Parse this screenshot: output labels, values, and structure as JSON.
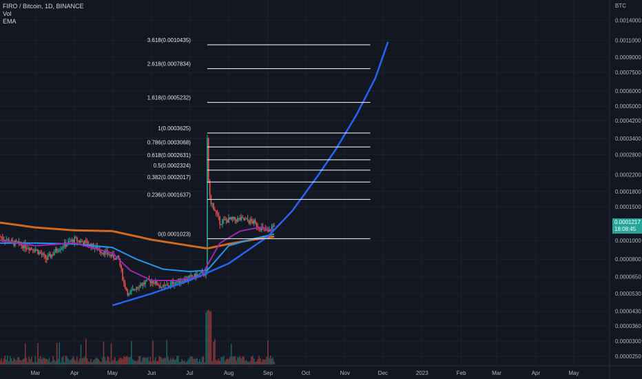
{
  "header": {
    "symbol_line": "FIRO / Bitcoin, 1D, BINANCE",
    "indicators": [
      "Vol",
      "EMA"
    ]
  },
  "price_axis": {
    "unit": "BTC",
    "labels": [
      "0.0014000",
      "0.0011000",
      "0.0009000",
      "0.0007500",
      "0.0006000",
      "0.0005000",
      "0.0004200",
      "0.0003400",
      "0.0002800",
      "0.0002200",
      "0.0001800",
      "0.0001500",
      "0.0001000",
      "0.0000800",
      "0.0000650",
      "0.0000530",
      "0.0000430",
      "0.0000360",
      "0.0000300",
      "0.0000250"
    ]
  },
  "price_badge": {
    "price": "0.0001217",
    "countdown": "18:08:45"
  },
  "time_axis": {
    "labels": [
      "Mar",
      "Apr",
      "May",
      "Jun",
      "Jul",
      "Aug",
      "Sep",
      "Oct",
      "Nov",
      "Dec",
      "2023",
      "Feb",
      "Mar",
      "Apr",
      "May"
    ]
  },
  "colors": {
    "background": "#131722",
    "grid": "#1e222d",
    "text": "#b2b5be",
    "up": "#26a69a",
    "down": "#ef5350",
    "ema_short": "#9c27b0",
    "ema_mid": "#2196f3",
    "ema_long": "#d2691e",
    "projection": "#2962ff",
    "fib": "#ffffff"
  },
  "chart_data": {
    "type": "line",
    "title": "FIRO / Bitcoin, 1D, BINANCE",
    "y_scale": "log",
    "ylim": [
      2.4e-05,
      0.00155
    ],
    "x_range": [
      "2022-02-01",
      "2023-05-31"
    ],
    "fib_levels": [
      {
        "label": "3.618(0.0010435)",
        "ratio": 3.618,
        "price": 0.0010435
      },
      {
        "label": "2.618(0.0007834)",
        "ratio": 2.618,
        "price": 0.0007834
      },
      {
        "label": "1.618(0.0005232)",
        "ratio": 1.618,
        "price": 0.0005232
      },
      {
        "label": "1(0.0003625)",
        "ratio": 1,
        "price": 0.0003625
      },
      {
        "label": "0.786(0.0003068)",
        "ratio": 0.786,
        "price": 0.0003068
      },
      {
        "label": "0.618(0.0002631)",
        "ratio": 0.618,
        "price": 0.0002631
      },
      {
        "label": "0.5(0.0002324)",
        "ratio": 0.5,
        "price": 0.0002324
      },
      {
        "label": "0.382(0.0002017)",
        "ratio": 0.382,
        "price": 0.0002017
      },
      {
        "label": "0.236(0.0001637)",
        "ratio": 0.236,
        "price": 0.0001637
      },
      {
        "label": "0(0.0001023)",
        "ratio": 0,
        "price": 0.0001023
      }
    ],
    "fib_range": {
      "start": "2022-07-15",
      "end": "2022-11-21"
    },
    "series": [
      {
        "kind": "price",
        "x": [
          "2022-02-01",
          "2022-02-10",
          "2022-02-20",
          "2022-03-01",
          "2022-03-10",
          "2022-03-20",
          "2022-04-01",
          "2022-04-10",
          "2022-04-20",
          "2022-05-01",
          "2022-05-06",
          "2022-05-10",
          "2022-05-14",
          "2022-05-20",
          "2022-06-01",
          "2022-06-10",
          "2022-06-20",
          "2022-07-01",
          "2022-07-10",
          "2022-07-14",
          "2022-07-15",
          "2022-07-16",
          "2022-07-18",
          "2022-07-25",
          "2022-08-01",
          "2022-08-10",
          "2022-08-20",
          "2022-09-01",
          "2022-09-06"
        ],
        "y": [
          0.000105,
          9.8e-05,
          9.4e-05,
          9e-05,
          8e-05,
          9.2e-05,
          0.000101,
          9.7e-05,
          9e-05,
          8.3e-05,
          8e-05,
          6e-05,
          5.2e-05,
          5.8e-05,
          6.2e-05,
          5.7e-05,
          6.1e-05,
          6.4e-05,
          6.7e-05,
          6.8e-05,
          0.00033,
          0.0002,
          0.00016,
          0.000125,
          0.000128,
          0.000129,
          0.000125,
          0.00011,
          0.0001217
        ]
      },
      {
        "kind": "ema_short",
        "x": [
          "2022-02-01",
          "2022-03-01",
          "2022-04-01",
          "2022-05-01",
          "2022-05-15",
          "2022-06-01",
          "2022-06-20",
          "2022-07-10",
          "2022-07-25",
          "2022-08-10",
          "2022-08-25",
          "2022-09-06"
        ],
        "y": [
          0.0001,
          9.4e-05,
          9.7e-05,
          8.6e-05,
          7e-05,
          6.2e-05,
          6.2e-05,
          6.5e-05,
          9.7e-05,
          0.000112,
          0.000117,
          0.000113
        ]
      },
      {
        "kind": "ema_mid",
        "x": [
          "2022-02-01",
          "2022-03-01",
          "2022-04-01",
          "2022-05-01",
          "2022-05-20",
          "2022-06-10",
          "2022-07-01",
          "2022-07-15",
          "2022-08-01",
          "2022-08-20",
          "2022-09-06"
        ],
        "y": [
          9.7e-05,
          9.7e-05,
          9.6e-05,
          9.2e-05,
          8e-05,
          7.1e-05,
          6.9e-05,
          7e-05,
          9.4e-05,
          0.000102,
          0.000108
        ]
      },
      {
        "kind": "ema_long",
        "x": [
          "2022-02-01",
          "2022-03-01",
          "2022-04-01",
          "2022-05-01",
          "2022-06-01",
          "2022-07-01",
          "2022-07-15",
          "2022-08-01",
          "2022-08-20",
          "2022-09-06"
        ],
        "y": [
          0.000124,
          0.000117,
          0.000113,
          0.000112,
          0.000101,
          9.4e-05,
          9.1e-05,
          9.6e-05,
          0.000101,
          0.000105
        ]
      },
      {
        "kind": "projection",
        "x": [
          "2022-05-01",
          "2022-06-01",
          "2022-07-01",
          "2022-08-01",
          "2022-09-01",
          "2022-09-20",
          "2022-10-10",
          "2022-10-25",
          "2022-11-10",
          "2022-11-25",
          "2022-12-05"
        ],
        "y": [
          4.6e-05,
          5.3e-05,
          6.2e-05,
          7.6e-05,
          0.000105,
          0.000142,
          0.000215,
          0.0003,
          0.00045,
          0.0007,
          0.00108
        ]
      }
    ]
  }
}
